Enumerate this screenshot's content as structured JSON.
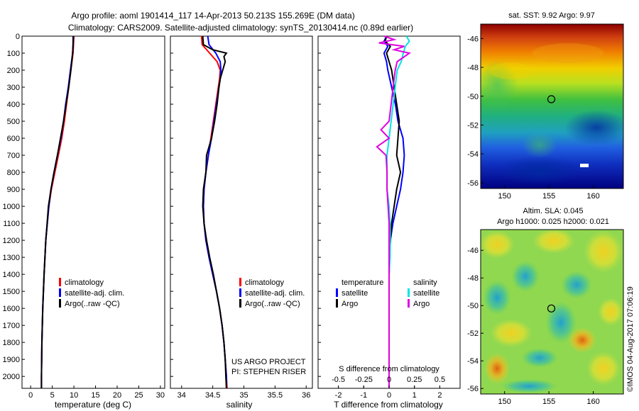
{
  "header": {
    "line1": "Argo profile: aoml 1901414_117 14-Apr-2013 50.213S 155.269E (DM data)",
    "line2": "Climatology: CARS2009. Satellite-adjusted climatology: synTS_20130414.nc (0.89d earlier)"
  },
  "colors": {
    "climatology": "#ff0000",
    "satellite": "#0000ff",
    "argo": "#000000",
    "sat_salinity": "#00e5e5",
    "argo_salinity": "#e000e0"
  },
  "depth_ticks": [
    "0",
    "100",
    "200",
    "300",
    "400",
    "500",
    "600",
    "700",
    "800",
    "900",
    "1000",
    "1100",
    "1200",
    "1300",
    "1400",
    "1500",
    "1600",
    "1700",
    "1800",
    "1900",
    "2000"
  ],
  "chart_data": [
    {
      "type": "line",
      "name": "temperature-profile",
      "xlabel": "temperature (deg C)",
      "xticks": [
        "0",
        "5",
        "10",
        "15",
        "20",
        "25",
        "30"
      ],
      "xlim": [
        -2,
        31
      ],
      "ylim": [
        2070,
        0
      ],
      "legend": [
        "climatology",
        "satellite-adj. clim.",
        "Argo(..raw -QC)"
      ],
      "series": [
        {
          "name": "climatology",
          "depth": [
            0,
            50,
            100,
            200,
            300,
            400,
            500,
            600,
            700,
            800,
            900,
            1000,
            1200,
            1400,
            1600,
            1800,
            2000,
            2070
          ],
          "values": [
            10,
            9.9,
            9.8,
            9.3,
            8.8,
            8.3,
            7.8,
            7.2,
            6.4,
            5.6,
            4.8,
            4.2,
            3.5,
            3.1,
            2.8,
            2.6,
            2.5,
            2.5
          ]
        },
        {
          "name": "satellite-adj. clim.",
          "depth": [
            0,
            50,
            100,
            200,
            300,
            400,
            500,
            600,
            700,
            800,
            900,
            1000,
            1200,
            1400,
            1600,
            1800,
            2000,
            2070
          ],
          "values": [
            9.8,
            9.8,
            9.7,
            9.2,
            8.7,
            8.1,
            7.6,
            7.0,
            6.2,
            5.4,
            4.7,
            4.2,
            3.5,
            3.1,
            2.8,
            2.6,
            2.5,
            2.5
          ]
        },
        {
          "name": "Argo(..raw -QC)",
          "depth": [
            0,
            50,
            100,
            200,
            300,
            400,
            500,
            600,
            700,
            800,
            900,
            1000,
            1200,
            1400,
            1600,
            1800,
            2000,
            2070
          ],
          "values": [
            9.9,
            9.8,
            9.7,
            9.3,
            8.8,
            8.2,
            7.6,
            6.9,
            6.2,
            5.4,
            4.7,
            4.1,
            3.5,
            3.1,
            2.8,
            2.6,
            2.5,
            2.5
          ]
        }
      ]
    },
    {
      "type": "line",
      "name": "salinity-profile",
      "xlabel": "salinity",
      "xticks": [
        "34",
        "34.5",
        "35",
        "35.5",
        "36"
      ],
      "xlim": [
        33.82,
        36.1
      ],
      "ylim": [
        2070,
        0
      ],
      "legend": [
        "climatology",
        "satellite-adj. clim.",
        "Argo(..raw -QC)"
      ],
      "annotation": [
        "US ARGO PROJECT",
        "PI: STEPHEN RISER"
      ],
      "series": [
        {
          "name": "climatology",
          "depth": [
            0,
            50,
            100,
            150,
            200,
            250,
            300,
            400,
            500,
            600,
            700,
            800,
            900,
            1000,
            1100,
            1200,
            1300,
            1400,
            1500,
            1600,
            1700,
            1800,
            1900,
            2000,
            2070
          ],
          "values": [
            34.32,
            34.33,
            34.45,
            34.57,
            34.62,
            34.61,
            34.59,
            34.55,
            34.51,
            34.47,
            34.43,
            34.39,
            34.36,
            34.35,
            34.36,
            34.39,
            34.44,
            34.5,
            34.56,
            34.61,
            34.65,
            34.68,
            34.7,
            34.72,
            34.73
          ]
        },
        {
          "name": "satellite-adj. clim.",
          "depth": [
            0,
            50,
            100,
            150,
            200,
            250,
            300,
            400,
            500,
            600,
            700,
            800,
            900,
            1000,
            1100,
            1200,
            1300,
            1400,
            1500,
            1600,
            1700,
            1800,
            1900,
            2000,
            2070
          ],
          "values": [
            34.42,
            34.44,
            34.55,
            34.62,
            34.63,
            34.62,
            34.6,
            34.56,
            34.52,
            34.48,
            34.43,
            34.39,
            34.36,
            34.35,
            34.36,
            34.39,
            34.44,
            34.5,
            34.56,
            34.61,
            34.65,
            34.68,
            34.7,
            34.72,
            34.72
          ]
        },
        {
          "name": "Argo(..raw -QC)",
          "depth": [
            0,
            50,
            80,
            100,
            120,
            150,
            200,
            250,
            300,
            400,
            500,
            600,
            700,
            800,
            900,
            1000,
            1100,
            1200,
            1300,
            1400,
            1500,
            1600,
            1700,
            1800,
            1900,
            2000,
            2070
          ],
          "values": [
            34.34,
            34.35,
            34.5,
            34.72,
            34.68,
            34.7,
            34.66,
            34.62,
            34.6,
            34.57,
            34.53,
            34.48,
            34.4,
            34.39,
            34.35,
            34.34,
            34.36,
            34.4,
            34.45,
            34.51,
            34.56,
            34.61,
            34.65,
            34.68,
            34.7,
            34.71,
            34.72
          ]
        }
      ]
    },
    {
      "type": "line",
      "name": "difference-profile",
      "xlabel": "T difference from climatology",
      "xticks": [
        "-2",
        "-1",
        "0",
        "1",
        "2"
      ],
      "top_label": "S difference from climatology",
      "top_ticks": [
        "-0.5",
        "-0.25",
        "0",
        "0.25",
        "0.5"
      ],
      "xlim": [
        -2.8,
        2.8
      ],
      "ylim": [
        2070,
        0
      ],
      "legend_headers": [
        "temperature",
        "salinity"
      ],
      "legend_left": [
        "satellite",
        "Argo"
      ],
      "legend_right": [
        "satellite",
        "Argo"
      ],
      "series": [
        {
          "name": "temperature satellite",
          "depth": [
            0,
            30,
            60,
            100,
            150,
            200,
            300,
            400,
            500,
            600,
            700,
            800,
            900,
            1000,
            1100,
            1200,
            1300,
            1400,
            1500,
            1600,
            1800,
            2000,
            2070
          ],
          "values": [
            -0.1,
            -0.2,
            -0.05,
            -0.2,
            -0.1,
            -0.05,
            0.1,
            0.25,
            0.35,
            0.55,
            0.6,
            0.55,
            0.45,
            0.3,
            0.15,
            0.05,
            0.02,
            0,
            0,
            0,
            0,
            0,
            0
          ]
        },
        {
          "name": "temperature Argo",
          "depth": [
            0,
            30,
            60,
            100,
            150,
            200,
            300,
            400,
            500,
            600,
            700,
            800,
            900,
            1000,
            1100,
            1200,
            1300,
            1400,
            1500,
            1600,
            1800,
            2000,
            2070
          ],
          "values": [
            -0.1,
            -0.15,
            0.05,
            -0.1,
            0,
            0.1,
            0.2,
            0.3,
            0.4,
            0.35,
            0.3,
            0.45,
            0.3,
            0.2,
            0.1,
            0.05,
            0.02,
            0,
            0,
            0,
            0,
            0,
            0
          ]
        },
        {
          "name": "salinity satellite",
          "depth": [
            0,
            30,
            60,
            100,
            150,
            200,
            300,
            400,
            500,
            600,
            700,
            800,
            900,
            1000,
            1100,
            1200,
            1300,
            1400,
            1500,
            1600,
            1800,
            2000,
            2070
          ],
          "values": [
            0.17,
            0.2,
            0.16,
            0.14,
            0.12,
            0.08,
            0.06,
            0.04,
            0.02,
            0.0,
            -0.02,
            -0.02,
            -0.02,
            0.0,
            0.01,
            0.01,
            0.01,
            0,
            0,
            0,
            0,
            0,
            0
          ]
        },
        {
          "name": "salinity Argo",
          "depth": [
            0,
            20,
            40,
            60,
            80,
            100,
            150,
            200,
            300,
            400,
            500,
            550,
            600,
            650,
            700,
            800,
            900,
            1000,
            1100,
            1200,
            1300,
            1400,
            1600,
            1800,
            2000,
            2070
          ],
          "values": [
            -0.05,
            0.05,
            -0.1,
            0.15,
            0.05,
            0.2,
            0.08,
            0.06,
            0.04,
            0.02,
            0.0,
            -0.08,
            0.0,
            -0.12,
            -0.03,
            -0.02,
            -0.02,
            -0.01,
            0,
            0,
            0,
            0,
            0,
            0,
            0,
            0
          ]
        }
      ]
    },
    {
      "type": "heatmap",
      "name": "sst-map",
      "title": "sat. SST: 9.92  Argo: 9.97",
      "xticks": [
        "150",
        "155",
        "160"
      ],
      "yticks": [
        "-46",
        "-48",
        "-50",
        "-52",
        "-54",
        "-56"
      ],
      "xlim": [
        147.3,
        163.4
      ],
      "ylim": [
        -56.4,
        -45.0
      ],
      "marker": {
        "lon": 155.27,
        "lat": -50.21
      }
    },
    {
      "type": "heatmap",
      "name": "sla-map",
      "title": "Altim. SLA: 0.045",
      "subtitle": "Argo h1000: 0.025 h2000: 0.021",
      "xticks": [
        "150",
        "155",
        "160"
      ],
      "yticks": [
        "-46",
        "-48",
        "-50",
        "-52",
        "-54",
        "-56"
      ],
      "xlim": [
        147.3,
        163.4
      ],
      "ylim": [
        -56.4,
        -44.5
      ],
      "marker": {
        "lon": 155.27,
        "lat": -50.21
      }
    }
  ],
  "footer": {
    "side_note": "©IMOS 04-Aug-2017 07:06:19"
  }
}
